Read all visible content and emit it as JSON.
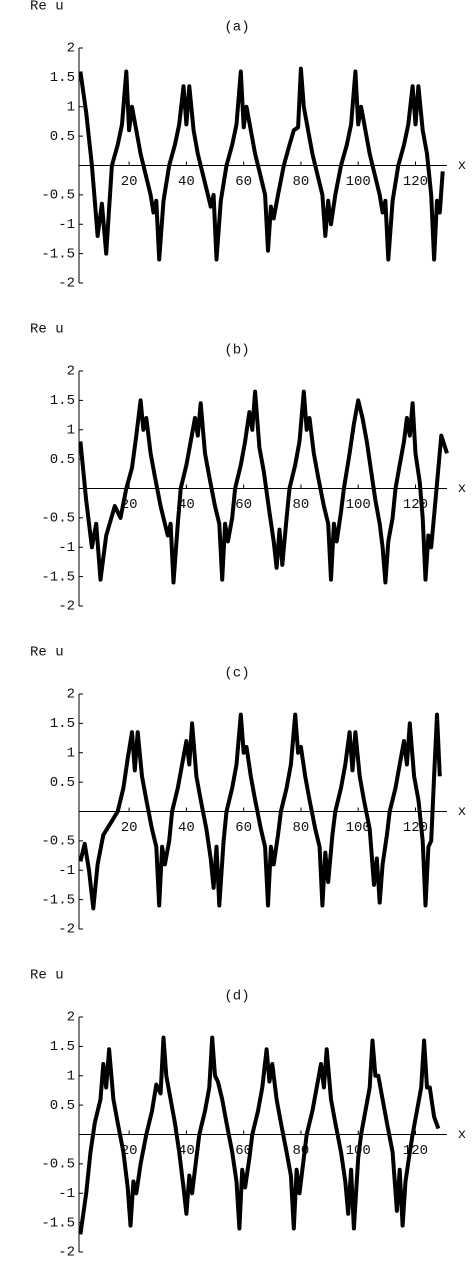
{
  "chart_data": [
    {
      "type": "line",
      "title": "(a)",
      "ylabel": "Re u",
      "xlabel": "x",
      "color": "#000000",
      "xlim": [
        2.5,
        131
      ],
      "ylim": [
        -2,
        2
      ],
      "xticks": [
        20,
        40,
        60,
        80,
        100,
        120
      ],
      "yticks": [
        -2,
        -1.5,
        -1,
        -0.5,
        0.5,
        1,
        1.5,
        2
      ],
      "grid": false,
      "x": [
        3,
        5,
        7,
        8,
        9,
        10.5,
        12,
        14,
        16,
        17.5,
        19,
        20,
        21,
        22.5,
        24,
        26,
        27.5,
        28.5,
        29.5,
        30.5,
        32,
        34,
        36,
        37.5,
        39,
        40,
        41,
        42.5,
        44,
        46,
        47.5,
        48.5,
        49.5,
        50.5,
        52,
        54,
        56,
        57.5,
        59,
        60,
        61,
        62.5,
        64,
        66,
        67.5,
        68.5,
        69.5,
        70.5,
        72,
        74,
        76,
        77.5,
        79,
        80,
        81,
        82.5,
        84,
        86,
        87.5,
        88.5,
        89.5,
        90.5,
        92,
        94,
        96,
        97.5,
        99,
        100,
        101,
        102.5,
        104,
        106,
        107.5,
        108.5,
        109.5,
        110.5,
        112,
        114,
        116,
        117.5,
        119,
        120,
        121,
        122.5,
        124,
        125.5,
        126.5,
        127.5,
        128.5,
        129.5
      ],
      "values": [
        1.6,
        0.9,
        0,
        -0.6,
        -1.2,
        -0.65,
        -1.5,
        0,
        0.35,
        0.7,
        1.6,
        0.6,
        1.0,
        0.6,
        0.2,
        -0.2,
        -0.5,
        -0.8,
        -0.6,
        -1.6,
        -0.6,
        0,
        0.35,
        0.7,
        1.35,
        0.7,
        1.35,
        0.6,
        0.2,
        -0.2,
        -0.5,
        -0.7,
        -0.5,
        -1.6,
        -0.6,
        0,
        0.35,
        0.7,
        1.6,
        0.65,
        1.0,
        0.6,
        0.2,
        -0.2,
        -0.5,
        -1.45,
        -0.7,
        -0.9,
        -0.5,
        0,
        0.35,
        0.6,
        0.65,
        1.65,
        1.0,
        0.6,
        0.2,
        -0.2,
        -0.5,
        -1.2,
        -0.6,
        -1.0,
        -0.5,
        0,
        0.35,
        0.7,
        1.6,
        0.7,
        1.0,
        0.6,
        0.2,
        -0.2,
        -0.5,
        -0.8,
        -0.6,
        -1.6,
        -0.6,
        0,
        0.35,
        0.7,
        1.35,
        0.7,
        1.35,
        0.6,
        0.2,
        -0.5,
        -1.6,
        -0.6,
        -0.8,
        -0.1
      ]
    },
    {
      "type": "line",
      "title": "(b)",
      "ylabel": "Re u",
      "xlabel": "x",
      "color": "#000000",
      "xlim": [
        2.5,
        131
      ],
      "ylim": [
        -2,
        2
      ],
      "xticks": [
        20,
        40,
        60,
        80,
        100,
        120
      ],
      "yticks": [
        -2,
        -1.5,
        -1,
        -0.5,
        0.5,
        1,
        1.5,
        2
      ],
      "grid": false,
      "x": [
        3,
        5,
        7,
        8.5,
        10,
        12,
        15,
        17,
        19,
        21,
        22.5,
        24,
        25,
        26,
        27.5,
        29,
        31,
        32.5,
        33.5,
        34.5,
        35.5,
        37,
        38,
        40,
        41.5,
        43,
        44,
        45,
        46.5,
        48,
        50,
        51.5,
        52.5,
        53.5,
        54.5,
        56,
        57,
        59,
        60.5,
        62,
        63,
        64,
        65.5,
        67,
        69,
        70.5,
        71.5,
        72.5,
        73.5,
        75,
        76,
        78,
        79.5,
        81,
        82,
        83,
        84.5,
        86,
        88,
        89.5,
        90.5,
        91.5,
        92.5,
        94,
        95,
        97,
        98.5,
        100,
        101.5,
        103,
        104.5,
        106,
        107.5,
        108.5,
        109.5,
        110.5,
        112,
        113,
        114.5,
        116,
        117,
        118,
        119,
        120,
        121.5,
        122.5,
        123.5,
        124.5,
        125.5,
        127,
        129,
        131
      ],
      "values": [
        0.8,
        -0.2,
        -1.0,
        -0.6,
        -1.55,
        -0.8,
        -0.3,
        -0.5,
        0,
        0.35,
        0.9,
        1.5,
        1.0,
        1.2,
        0.6,
        0.2,
        -0.3,
        -0.6,
        -0.8,
        -0.6,
        -1.6,
        -0.6,
        0,
        0.4,
        0.8,
        1.2,
        0.9,
        1.45,
        0.6,
        0.2,
        -0.3,
        -0.6,
        -1.55,
        -0.6,
        -0.9,
        -0.5,
        0,
        0.4,
        0.8,
        1.3,
        1.0,
        1.65,
        0.7,
        0.3,
        -0.4,
        -0.9,
        -1.35,
        -0.7,
        -1.3,
        -0.5,
        0,
        0.4,
        0.8,
        1.65,
        1.0,
        1.2,
        0.6,
        0.2,
        -0.3,
        -0.6,
        -1.55,
        -0.6,
        -0.9,
        -0.4,
        0,
        0.6,
        1.1,
        1.5,
        1.2,
        0.8,
        0.3,
        -0.2,
        -0.6,
        -1.0,
        -1.6,
        -0.9,
        -0.5,
        0,
        0.4,
        0.8,
        1.2,
        0.9,
        1.45,
        0.6,
        0.1,
        -0.5,
        -1.55,
        -0.8,
        -1.0,
        -0.2,
        0.9,
        0.6
      ]
    },
    {
      "type": "line",
      "title": "(c)",
      "ylabel": "Re u",
      "xlabel": "x",
      "color": "#000000",
      "xlim": [
        2.5,
        131
      ],
      "ylim": [
        -2,
        2
      ],
      "xticks": [
        20,
        40,
        60,
        80,
        100,
        120
      ],
      "yticks": [
        -2,
        -1.5,
        -1,
        -0.5,
        0.5,
        1,
        1.5,
        2
      ],
      "grid": false,
      "x": [
        3,
        4.5,
        6,
        7.5,
        9,
        11,
        13.5,
        16,
        18,
        19.5,
        21,
        22,
        23,
        24.5,
        26,
        28,
        29.5,
        30.5,
        31.5,
        32.5,
        34,
        35,
        37,
        38.5,
        40,
        41,
        42,
        43.5,
        45,
        47,
        48.5,
        49.5,
        50.5,
        51.5,
        53,
        54,
        56,
        57.5,
        59,
        60,
        61,
        62.5,
        64,
        66,
        67.5,
        68.5,
        69.5,
        70.5,
        72,
        73,
        75,
        76.5,
        78,
        79,
        80,
        81.5,
        83,
        85,
        86.5,
        87.5,
        88.5,
        89.5,
        91,
        92,
        94,
        95.5,
        97,
        98,
        99,
        100.5,
        102,
        104,
        105.5,
        106.5,
        107.5,
        108.5,
        110,
        111,
        113,
        114.5,
        116,
        117,
        118,
        119.5,
        121,
        122.5,
        123.5,
        124.5,
        125.5,
        126.5,
        127.5,
        128.5
      ],
      "values": [
        -0.85,
        -0.55,
        -1.0,
        -1.65,
        -0.9,
        -0.4,
        -0.2,
        0,
        0.4,
        0.9,
        1.35,
        0.7,
        1.35,
        0.6,
        0.2,
        -0.3,
        -0.6,
        -1.6,
        -0.6,
        -0.9,
        -0.5,
        0,
        0.4,
        0.8,
        1.2,
        0.8,
        1.5,
        0.6,
        0.2,
        -0.3,
        -0.8,
        -1.3,
        -0.6,
        -1.6,
        -0.5,
        0,
        0.4,
        0.8,
        1.65,
        1.0,
        1.1,
        0.6,
        0.2,
        -0.3,
        -0.6,
        -1.6,
        -0.6,
        -0.9,
        -0.4,
        0,
        0.4,
        0.8,
        1.65,
        1.0,
        1.1,
        0.6,
        0.2,
        -0.3,
        -0.6,
        -1.6,
        -0.7,
        -1.2,
        -0.4,
        0,
        0.4,
        0.8,
        1.35,
        0.7,
        1.35,
        0.6,
        0.2,
        -0.3,
        -1.25,
        -0.8,
        -1.55,
        -0.9,
        -0.4,
        0,
        0.4,
        0.8,
        1.2,
        0.8,
        1.5,
        0.6,
        0.2,
        -0.5,
        -1.6,
        -0.6,
        -0.5,
        0.6,
        1.65,
        0.6
      ]
    },
    {
      "type": "line",
      "title": "(d)",
      "ylabel": "Re u",
      "xlabel": "x",
      "color": "#000000",
      "xlim": [
        2.5,
        131
      ],
      "ylim": [
        -2,
        2
      ],
      "xticks": [
        20,
        40,
        60,
        80,
        100,
        120
      ],
      "yticks": [
        -2,
        -1.5,
        -1,
        -0.5,
        0.5,
        1,
        1.5,
        2
      ],
      "grid": false,
      "x": [
        3,
        5,
        6.5,
        8,
        10,
        11,
        12,
        13,
        14.5,
        16,
        18,
        19.5,
        20.5,
        21.5,
        22.5,
        24,
        26,
        28,
        29.5,
        31,
        32,
        33,
        34.5,
        36,
        37.5,
        39,
        40,
        41,
        42,
        43.5,
        44.5,
        46.5,
        48,
        49,
        50,
        51,
        52.5,
        54,
        56,
        57.5,
        58.5,
        59.5,
        60.5,
        62,
        63,
        65,
        66.5,
        68,
        69,
        70,
        71.5,
        73,
        75,
        76.5,
        77.5,
        78.5,
        79.5,
        81,
        82,
        84,
        85.5,
        87,
        88,
        89,
        90.5,
        92,
        94,
        95.5,
        96.5,
        97.5,
        98.5,
        100,
        101,
        102.5,
        104,
        105,
        106,
        107,
        108.5,
        110,
        112,
        113.5,
        114.5,
        115.5,
        116.5,
        118,
        119,
        120.5,
        122,
        123,
        124,
        125,
        126.5,
        128
      ],
      "values": [
        -1.7,
        -1.0,
        -0.3,
        0.2,
        0.6,
        1.2,
        0.8,
        1.45,
        0.6,
        0.2,
        -0.3,
        -0.9,
        -1.55,
        -0.8,
        -1.0,
        -0.5,
        0,
        0.4,
        0.85,
        0.7,
        1.65,
        1.0,
        0.6,
        0.2,
        -0.3,
        -0.9,
        -1.35,
        -0.7,
        -1.0,
        -0.4,
        0,
        0.4,
        0.8,
        1.65,
        1.0,
        0.9,
        0.6,
        0.2,
        -0.3,
        -0.8,
        -1.6,
        -0.6,
        -0.9,
        -0.4,
        0,
        0.4,
        0.8,
        1.45,
        0.9,
        1.2,
        0.6,
        0.2,
        -0.3,
        -0.7,
        -1.6,
        -0.6,
        -1.0,
        -0.4,
        0,
        0.4,
        0.8,
        1.2,
        0.8,
        1.45,
        0.6,
        0.2,
        -0.3,
        -0.8,
        -1.35,
        -0.6,
        -1.6,
        -0.4,
        0,
        0.4,
        0.8,
        1.6,
        1.0,
        1.0,
        0.6,
        0.2,
        -0.3,
        -1.3,
        -0.6,
        -1.55,
        -0.8,
        -0.3,
        0,
        0.4,
        0.8,
        1.6,
        0.8,
        0.8,
        0.3,
        0.1
      ]
    }
  ]
}
